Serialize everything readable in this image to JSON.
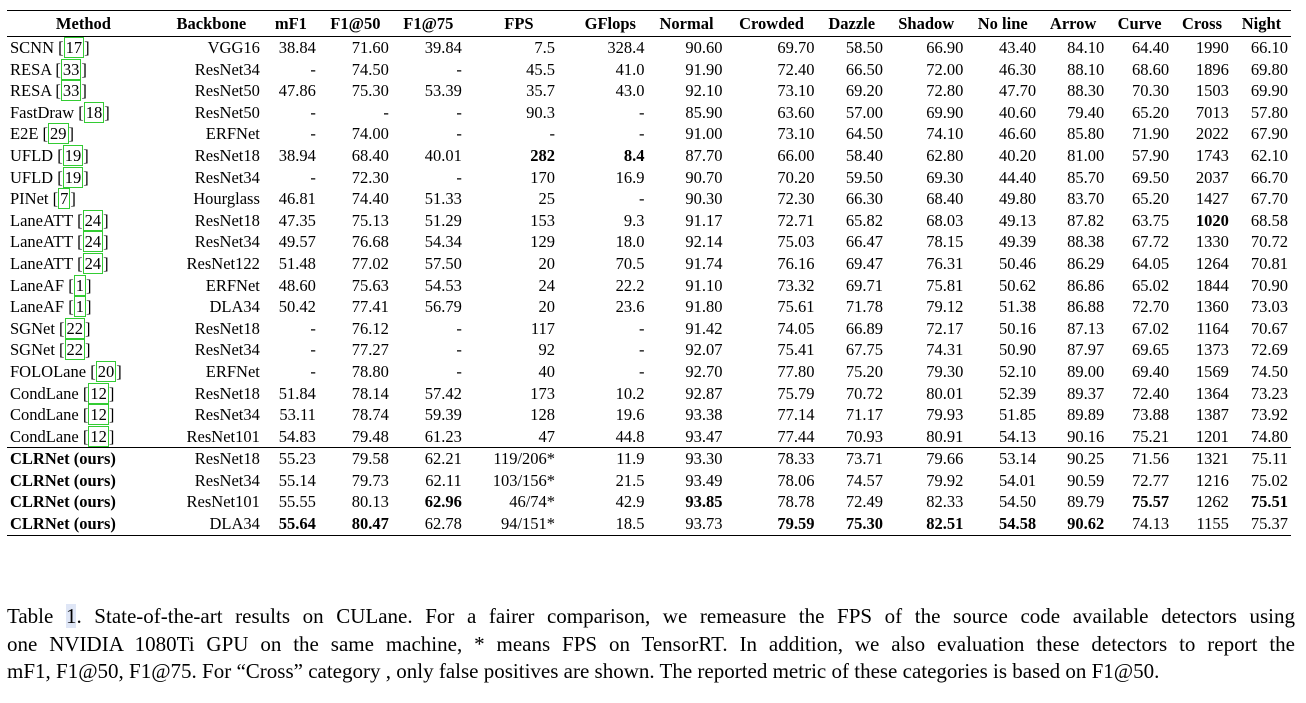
{
  "table": {
    "columns": [
      "Method",
      "Backbone",
      "mF1",
      "F1@50",
      "F1@75",
      "FPS",
      "GFlops",
      "Normal",
      "Crowded",
      "Dazzle",
      "Shadow",
      "No line",
      "Arrow",
      "Curve",
      "Cross",
      "Night"
    ],
    "rows": [
      {
        "method": "SCNN",
        "ref": "17",
        "ref_box": true,
        "cells": [
          "VGG16",
          "38.84",
          "71.60",
          "39.84",
          "7.5",
          "328.4",
          "90.60",
          "69.70",
          "58.50",
          "66.90",
          "43.40",
          "84.10",
          "64.40",
          "1990",
          "66.10"
        ],
        "bold": []
      },
      {
        "method": "RESA",
        "ref": "33",
        "ref_box": true,
        "cells": [
          "ResNet34",
          "-",
          "74.50",
          "-",
          "45.5",
          "41.0",
          "91.90",
          "72.40",
          "66.50",
          "72.00",
          "46.30",
          "88.10",
          "68.60",
          "1896",
          "69.80"
        ],
        "bold": []
      },
      {
        "method": "RESA",
        "ref": "33",
        "ref_box": true,
        "cells": [
          "ResNet50",
          "47.86",
          "75.30",
          "53.39",
          "35.7",
          "43.0",
          "92.10",
          "73.10",
          "69.20",
          "72.80",
          "47.70",
          "88.30",
          "70.30",
          "1503",
          "69.90"
        ],
        "bold": []
      },
      {
        "method": "FastDraw",
        "ref": "18",
        "ref_box": true,
        "cells": [
          "ResNet50",
          "-",
          "-",
          "-",
          "90.3",
          "-",
          "85.90",
          "63.60",
          "57.00",
          "69.90",
          "40.60",
          "79.40",
          "65.20",
          "7013",
          "57.80"
        ],
        "bold": []
      },
      {
        "method": "E2E",
        "ref": "29",
        "ref_box": true,
        "cells": [
          "ERFNet",
          "-",
          "74.00",
          "-",
          "-",
          "-",
          "91.00",
          "73.10",
          "64.50",
          "74.10",
          "46.60",
          "85.80",
          "71.90",
          "2022",
          "67.90"
        ],
        "bold": []
      },
      {
        "method": "UFLD",
        "ref": "19",
        "ref_box": true,
        "cells": [
          "ResNet18",
          "38.94",
          "68.40",
          "40.01",
          "282",
          "8.4",
          "87.70",
          "66.00",
          "58.40",
          "62.80",
          "40.20",
          "81.00",
          "57.90",
          "1743",
          "62.10"
        ],
        "bold": [
          4,
          5
        ]
      },
      {
        "method": "UFLD",
        "ref": "19",
        "ref_box": true,
        "cells": [
          "ResNet34",
          "-",
          "72.30",
          "-",
          "170",
          "16.9",
          "90.70",
          "70.20",
          "59.50",
          "69.30",
          "44.40",
          "85.70",
          "69.50",
          "2037",
          "66.70"
        ],
        "bold": []
      },
      {
        "method": "PINet",
        "ref": "7",
        "ref_box": true,
        "cells": [
          "Hourglass",
          "46.81",
          "74.40",
          "51.33",
          "25",
          "-",
          "90.30",
          "72.30",
          "66.30",
          "68.40",
          "49.80",
          "83.70",
          "65.20",
          "1427",
          "67.70"
        ],
        "bold": []
      },
      {
        "method": "LaneATT",
        "ref": "24",
        "ref_box": true,
        "cells": [
          "ResNet18",
          "47.35",
          "75.13",
          "51.29",
          "153",
          "9.3",
          "91.17",
          "72.71",
          "65.82",
          "68.03",
          "49.13",
          "87.82",
          "63.75",
          "1020",
          "68.58"
        ],
        "bold": [
          13
        ]
      },
      {
        "method": "LaneATT",
        "ref": "24",
        "ref_box": true,
        "cells": [
          "ResNet34",
          "49.57",
          "76.68",
          "54.34",
          "129",
          "18.0",
          "92.14",
          "75.03",
          "66.47",
          "78.15",
          "49.39",
          "88.38",
          "67.72",
          "1330",
          "70.72"
        ],
        "bold": []
      },
      {
        "method": "LaneATT",
        "ref": "24",
        "ref_box": true,
        "cells": [
          "ResNet122",
          "51.48",
          "77.02",
          "57.50",
          "20",
          "70.5",
          "91.74",
          "76.16",
          "69.47",
          "76.31",
          "50.46",
          "86.29",
          "64.05",
          "1264",
          "70.81"
        ],
        "bold": []
      },
      {
        "method": "LaneAF",
        "ref": "1",
        "ref_box": true,
        "cells": [
          "ERFNet",
          "48.60",
          "75.63",
          "54.53",
          "24",
          "22.2",
          "91.10",
          "73.32",
          "69.71",
          "75.81",
          "50.62",
          "86.86",
          "65.02",
          "1844",
          "70.90"
        ],
        "bold": []
      },
      {
        "method": "LaneAF",
        "ref": "1",
        "ref_box": true,
        "cells": [
          "DLA34",
          "50.42",
          "77.41",
          "56.79",
          "20",
          "23.6",
          "91.80",
          "75.61",
          "71.78",
          "79.12",
          "51.38",
          "86.88",
          "72.70",
          "1360",
          "73.03"
        ],
        "bold": []
      },
      {
        "method": "SGNet",
        "ref": "22",
        "ref_box": true,
        "cells": [
          "ResNet18",
          "-",
          "76.12",
          "-",
          "117",
          "-",
          "91.42",
          "74.05",
          "66.89",
          "72.17",
          "50.16",
          "87.13",
          "67.02",
          "1164",
          "70.67"
        ],
        "bold": []
      },
      {
        "method": "SGNet",
        "ref": "22",
        "ref_box": true,
        "cells": [
          "ResNet34",
          "-",
          "77.27",
          "-",
          "92",
          "-",
          "92.07",
          "75.41",
          "67.75",
          "74.31",
          "50.90",
          "87.97",
          "69.65",
          "1373",
          "72.69"
        ],
        "bold": []
      },
      {
        "method": "FOLOLane",
        "ref": "20",
        "ref_box": true,
        "cells": [
          "ERFNet",
          "-",
          "78.80",
          "-",
          "40",
          "-",
          "92.70",
          "77.80",
          "75.20",
          "79.30",
          "52.10",
          "89.00",
          "69.40",
          "1569",
          "74.50"
        ],
        "bold": []
      },
      {
        "method": "CondLane",
        "ref": "12",
        "ref_box": true,
        "cells": [
          "ResNet18",
          "51.84",
          "78.14",
          "57.42",
          "173",
          "10.2",
          "92.87",
          "75.79",
          "70.72",
          "80.01",
          "52.39",
          "89.37",
          "72.40",
          "1364",
          "73.23"
        ],
        "bold": []
      },
      {
        "method": "CondLane",
        "ref": "12",
        "ref_box": true,
        "cells": [
          "ResNet34",
          "53.11",
          "78.74",
          "59.39",
          "128",
          "19.6",
          "93.38",
          "77.14",
          "71.17",
          "79.93",
          "51.85",
          "89.89",
          "73.88",
          "1387",
          "73.92"
        ],
        "bold": []
      },
      {
        "method": "CondLane",
        "ref": "12",
        "ref_box": true,
        "cells": [
          "ResNet101",
          "54.83",
          "79.48",
          "61.23",
          "47",
          "44.8",
          "93.47",
          "77.44",
          "70.93",
          "80.91",
          "54.13",
          "90.16",
          "75.21",
          "1201",
          "74.80"
        ],
        "bold": []
      }
    ],
    "ours_rows": [
      {
        "method": "CLRNet (ours)",
        "cells": [
          "ResNet18",
          "55.23",
          "79.58",
          "62.21",
          "119/206*",
          "11.9",
          "93.30",
          "78.33",
          "73.71",
          "79.66",
          "53.14",
          "90.25",
          "71.56",
          "1321",
          "75.11"
        ],
        "bold": []
      },
      {
        "method": "CLRNet (ours)",
        "cells": [
          "ResNet34",
          "55.14",
          "79.73",
          "62.11",
          "103/156*",
          "21.5",
          "93.49",
          "78.06",
          "74.57",
          "79.92",
          "54.01",
          "90.59",
          "72.77",
          "1216",
          "75.02"
        ],
        "bold": []
      },
      {
        "method": "CLRNet (ours)",
        "cells": [
          "ResNet101",
          "55.55",
          "80.13",
          "62.96",
          "46/74*",
          "42.9",
          "93.85",
          "78.78",
          "72.49",
          "82.33",
          "54.50",
          "89.79",
          "75.57",
          "1262",
          "75.51"
        ],
        "bold": [
          3,
          6,
          12,
          14
        ]
      },
      {
        "method": "CLRNet (ours)",
        "cells": [
          "DLA34",
          "55.64",
          "80.47",
          "62.78",
          "94/151*",
          "18.5",
          "93.73",
          "79.59",
          "75.30",
          "82.51",
          "54.58",
          "90.62",
          "74.13",
          "1155",
          "75.37"
        ],
        "bold": [
          1,
          2,
          7,
          8,
          9,
          10,
          11
        ]
      }
    ]
  },
  "caption": {
    "prefix": "Table ",
    "number": "1",
    "lines": [
      ". State-of-the-art results on CULane. For a fairer comparison, we remeasure the FPS of the source code available detectors using",
      "one NVIDIA 1080Ti GPU on the same machine, * means FPS on TensorRT. In addition, we also evaluation these detectors to report the",
      "mF1, F1@50, F1@75. For “Cross” category , only false positives are shown. The reported metric of these categories is based on F1@50."
    ]
  }
}
